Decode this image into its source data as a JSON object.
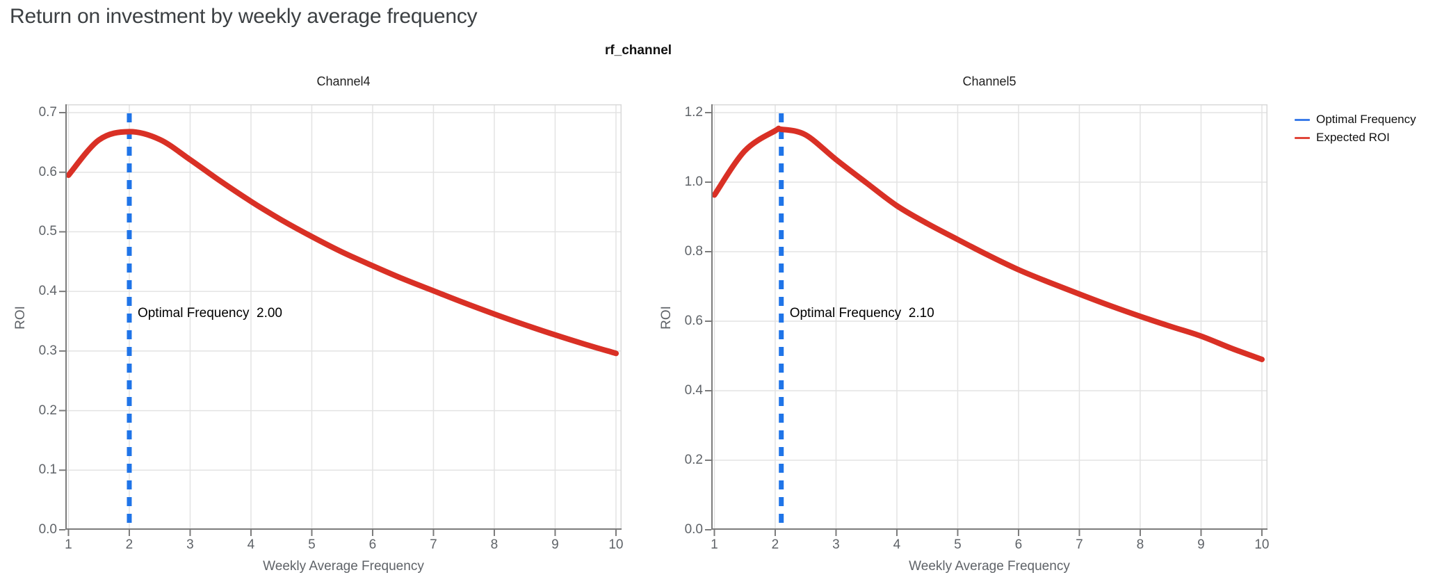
{
  "page_title": "Return on investment by weekly average frequency",
  "figure_title": "rf_channel",
  "legend": {
    "items": [
      {
        "label": "Optimal Frequency",
        "color": "#3b7ce9"
      },
      {
        "label": "Expected ROI",
        "color": "#e0463a"
      }
    ]
  },
  "colors": {
    "expected_roi_red": "#d93025",
    "optimal_frequency_blue": "#1f74e8",
    "gridline": "#e3e3e3",
    "axis": "#7b7b7b",
    "plot_border": "#d9d9d9",
    "tick_label": "#5f6368",
    "page_title": "#3c4043"
  },
  "chart_data": [
    {
      "type": "line",
      "title": "Channel4",
      "xlabel": "Weekly Average Frequency",
      "ylabel": "ROI",
      "xlim": [
        0.949,
        10.092
      ],
      "ylim": [
        0,
        0.714
      ],
      "xticks": [
        1,
        2,
        3,
        4,
        5,
        6,
        7,
        8,
        9,
        10
      ],
      "yticks": [
        0.0,
        0.1,
        0.2,
        0.3,
        0.4,
        0.5,
        0.6,
        0.7
      ],
      "ytick_labels": [
        "0.0",
        "0.1",
        "0.2",
        "0.3",
        "0.4",
        "0.5",
        "0.6",
        "0.7"
      ],
      "grid": true,
      "optimal_frequency": 2.0,
      "annotation": "Optimal Frequency  2.00",
      "series": [
        {
          "name": "Expected ROI",
          "x": [
            1,
            1.5,
            2,
            2.5,
            3,
            3.5,
            4,
            4.5,
            5,
            5.5,
            6,
            6.5,
            7,
            7.5,
            8,
            8.5,
            9,
            9.5,
            10
          ],
          "y": [
            0.595,
            0.654,
            0.668,
            0.655,
            0.621,
            0.585,
            0.551,
            0.52,
            0.492,
            0.466,
            0.443,
            0.421,
            0.401,
            0.381,
            0.362,
            0.344,
            0.327,
            0.311,
            0.296
          ]
        }
      ]
    },
    {
      "type": "line",
      "title": "Channel5",
      "xlabel": "Weekly Average Frequency",
      "ylabel": "ROI",
      "xlim": [
        0.949,
        10.092
      ],
      "ylim": [
        0,
        1.224
      ],
      "xticks": [
        1,
        2,
        3,
        4,
        5,
        6,
        7,
        8,
        9,
        10
      ],
      "yticks": [
        0.0,
        0.2,
        0.4,
        0.6,
        0.8,
        1.0,
        1.2
      ],
      "ytick_labels": [
        "0.0",
        "0.2",
        "0.4",
        "0.6",
        "0.8",
        "1.0",
        "1.2"
      ],
      "grid": true,
      "optimal_frequency": 2.1,
      "annotation": "Optimal Frequency  2.10",
      "series": [
        {
          "name": "Expected ROI",
          "x": [
            1,
            1.5,
            2,
            2.1,
            2.5,
            3,
            3.5,
            4,
            4.5,
            5,
            5.5,
            6,
            6.5,
            7,
            7.5,
            8,
            8.5,
            9,
            9.5,
            10
          ],
          "y": [
            0.963,
            1.09,
            1.148,
            1.152,
            1.136,
            1.065,
            0.998,
            0.932,
            0.881,
            0.835,
            0.79,
            0.748,
            0.712,
            0.678,
            0.645,
            0.614,
            0.585,
            0.557,
            0.522,
            0.49
          ]
        }
      ]
    }
  ]
}
